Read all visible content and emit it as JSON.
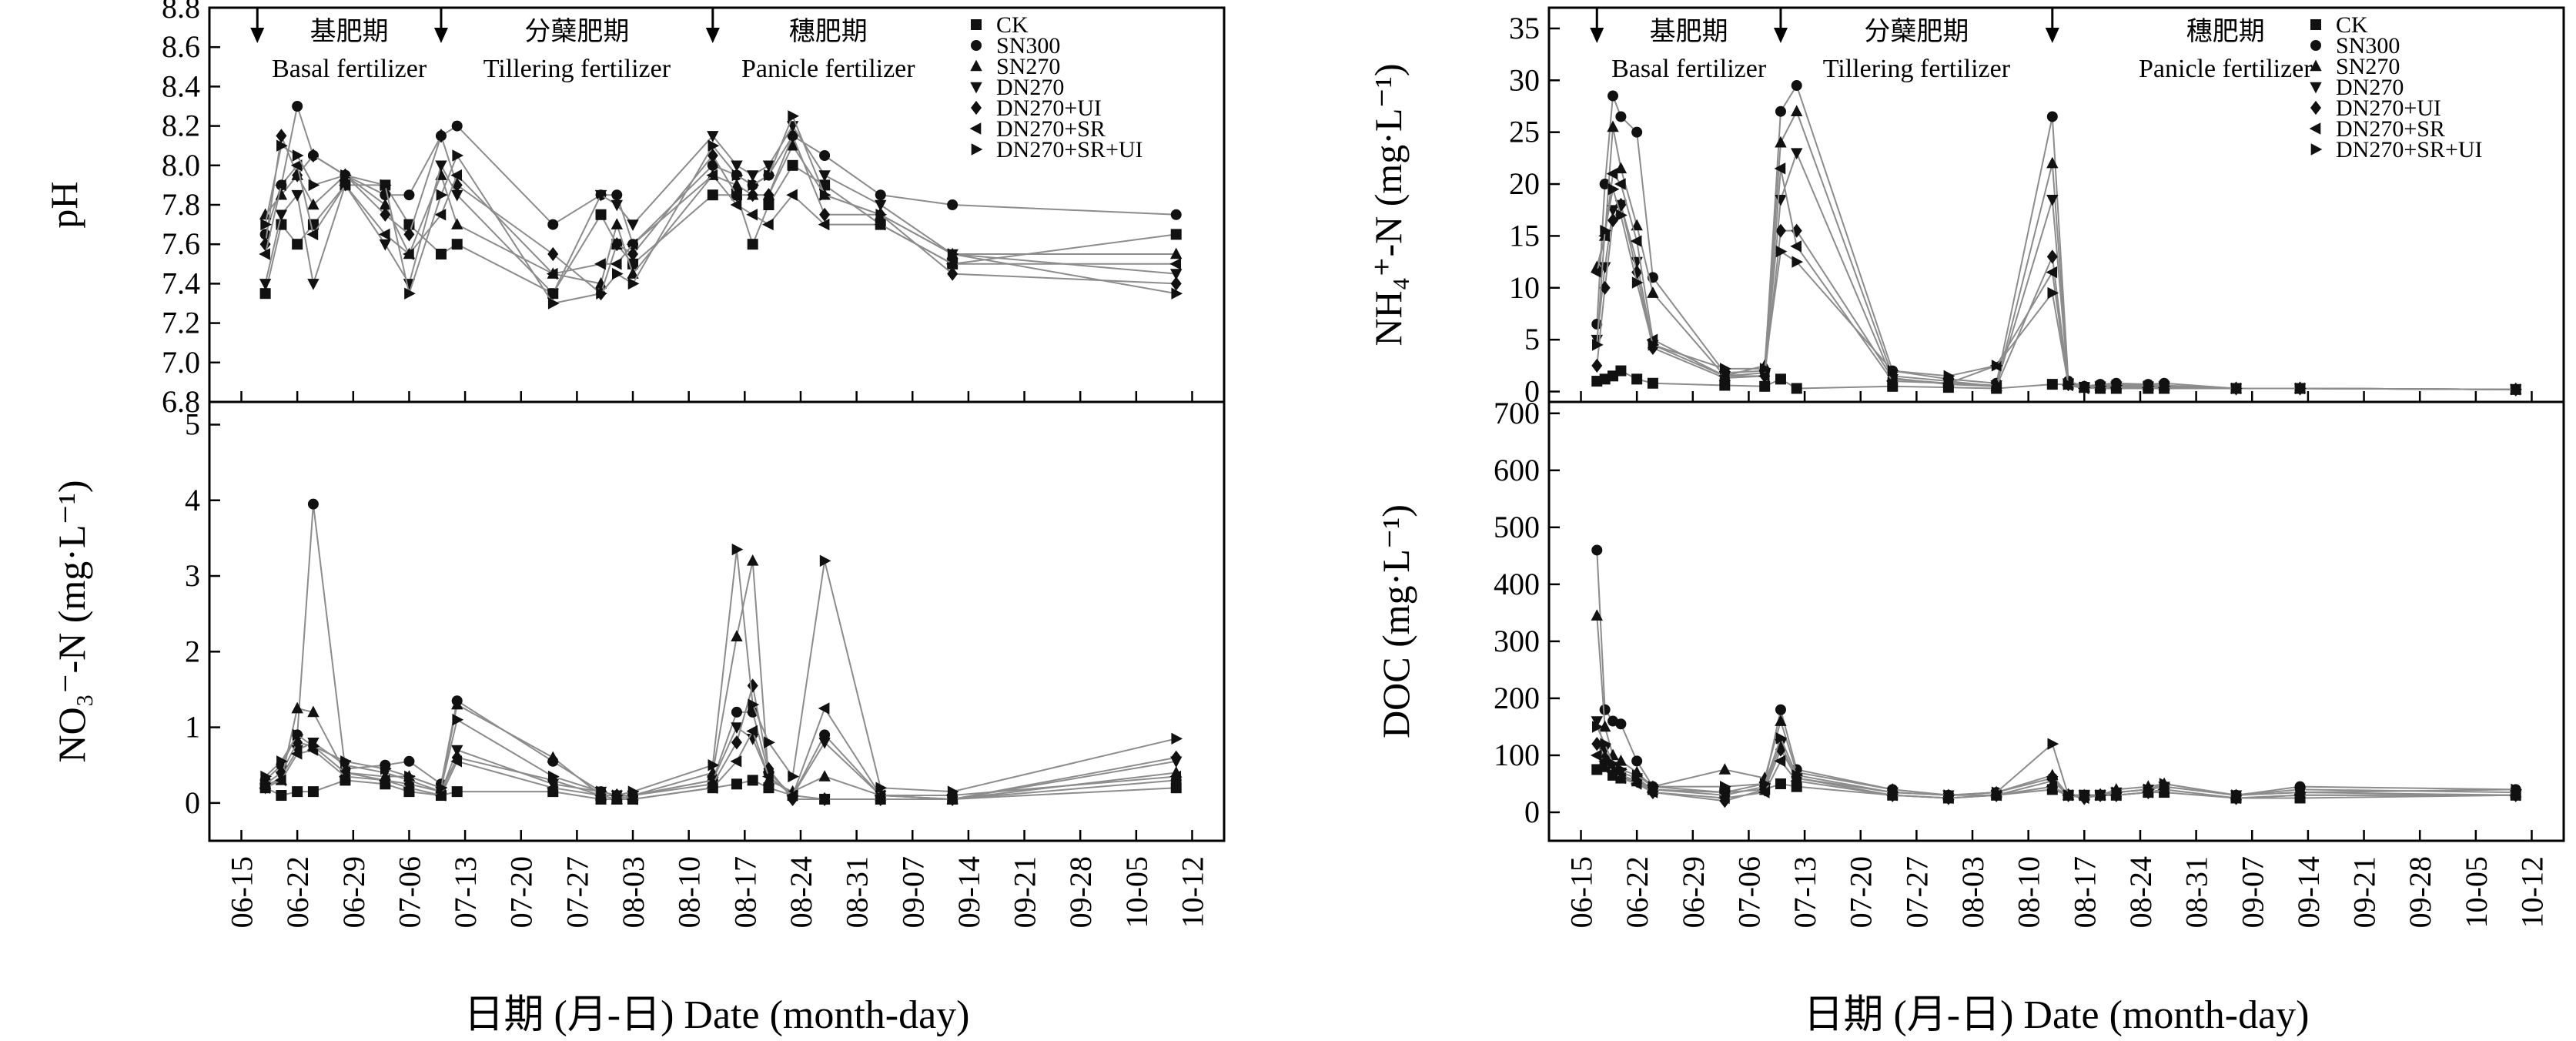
{
  "figure": {
    "series_styles": [
      {
        "name": "CK",
        "marker": "square"
      },
      {
        "name": "SN300",
        "marker": "circle"
      },
      {
        "name": "SN270",
        "marker": "triangle-up"
      },
      {
        "name": "DN270",
        "marker": "triangle-down"
      },
      {
        "name": "DN270+UI",
        "marker": "diamond"
      },
      {
        "name": "DN270+SR",
        "marker": "triangle-left"
      },
      {
        "name": "DN270+SR+UI",
        "marker": "triangle-right"
      }
    ],
    "stages": [
      {
        "cn": "基肥期",
        "en": "Basal fertilizer"
      },
      {
        "cn": "分蘖肥期",
        "en": "Tillering fertilizer"
      },
      {
        "cn": "穗肥期",
        "en": "Panicle fertilizer"
      }
    ],
    "x_ticks": [
      "06-15",
      "06-22",
      "06-29",
      "07-06",
      "07-13",
      "07-20",
      "07-27",
      "08-03",
      "08-10",
      "08-17",
      "08-24",
      "08-31",
      "09-07",
      "09-14",
      "09-21",
      "09-28",
      "10-05",
      "10-12"
    ],
    "xlabel": "日期 (月-日) Date (month-day)",
    "colors": {
      "line": "#8c8c8c",
      "marker": "#111111",
      "axis": "#000000"
    }
  },
  "chart_data": [
    {
      "type": "line",
      "panel": "pH",
      "ylabel": "pH",
      "ylim": [
        6.8,
        8.8
      ],
      "yticks": [
        "6.8",
        "7.0",
        "7.2",
        "7.4",
        "7.6",
        "7.8",
        "8.0",
        "8.2",
        "8.4",
        "8.6",
        "8.8"
      ],
      "xlim": [
        "06-15",
        "10-12"
      ],
      "arrows": [
        "06-17",
        "07-10",
        "08-13"
      ],
      "x": [
        "06-18",
        "06-20",
        "06-22",
        "06-24",
        "06-28",
        "07-03",
        "07-06",
        "07-10",
        "07-12",
        "07-24",
        "07-30",
        "08-01",
        "08-03",
        "08-13",
        "08-16",
        "08-18",
        "08-20",
        "08-23",
        "08-27",
        "09-03",
        "09-12",
        "10-10"
      ],
      "series": [
        {
          "name": "CK",
          "values": [
            7.35,
            7.7,
            7.6,
            7.7,
            7.9,
            7.9,
            7.7,
            7.55,
            7.6,
            7.35,
            7.75,
            7.6,
            7.5,
            7.85,
            7.85,
            7.6,
            7.8,
            8.0,
            7.9,
            7.7,
            7.5,
            7.65
          ]
        },
        {
          "name": "SN300",
          "values": [
            7.65,
            7.9,
            8.3,
            8.05,
            7.95,
            7.85,
            7.85,
            8.15,
            8.2,
            7.7,
            7.85,
            7.85,
            7.6,
            8.0,
            7.95,
            7.9,
            7.95,
            8.15,
            8.05,
            7.85,
            7.8,
            7.75
          ]
        },
        {
          "name": "SN270",
          "values": [
            7.75,
            7.85,
            7.95,
            7.8,
            7.95,
            7.8,
            7.55,
            7.95,
            7.7,
            7.45,
            7.4,
            7.7,
            7.45,
            7.95,
            7.9,
            7.85,
            7.85,
            8.1,
            7.85,
            7.75,
            7.55,
            7.55
          ]
        },
        {
          "name": "DN270",
          "values": [
            7.4,
            7.75,
            7.85,
            7.4,
            7.9,
            7.6,
            7.4,
            8.0,
            7.85,
            7.35,
            7.85,
            7.8,
            7.7,
            8.15,
            8.0,
            7.95,
            8.0,
            8.2,
            7.95,
            7.8,
            7.55,
            7.45
          ]
        },
        {
          "name": "DN270+UI",
          "values": [
            7.6,
            8.15,
            7.95,
            8.05,
            7.95,
            7.75,
            7.65,
            8.15,
            7.9,
            7.55,
            7.35,
            7.6,
            7.55,
            8.05,
            7.85,
            7.85,
            7.85,
            8.15,
            7.75,
            7.75,
            7.45,
            7.4
          ]
        },
        {
          "name": "DN270+SR",
          "values": [
            7.55,
            7.9,
            8.0,
            7.65,
            7.9,
            7.65,
            7.55,
            7.75,
            7.95,
            7.45,
            7.5,
            7.5,
            7.6,
            7.95,
            7.8,
            7.75,
            7.7,
            7.85,
            7.7,
            7.7,
            7.5,
            7.5
          ]
        },
        {
          "name": "DN270+SR+UI",
          "values": [
            7.7,
            8.1,
            8.05,
            7.9,
            7.95,
            7.9,
            7.35,
            7.85,
            8.05,
            7.3,
            7.35,
            7.45,
            7.4,
            8.1,
            7.95,
            7.9,
            7.95,
            8.25,
            7.85,
            7.75,
            7.55,
            7.35
          ]
        }
      ]
    },
    {
      "type": "line",
      "panel": "NO3-N",
      "ylabel": "NO₃⁻-N (mg·L⁻¹)",
      "ylim": [
        -0.5,
        5.3
      ],
      "yticks": [
        "0",
        "1",
        "2",
        "3",
        "4",
        "5"
      ],
      "xlim": [
        "06-15",
        "10-12"
      ],
      "x": [
        "06-18",
        "06-20",
        "06-22",
        "06-24",
        "06-28",
        "07-03",
        "07-06",
        "07-10",
        "07-12",
        "07-24",
        "07-30",
        "08-01",
        "08-03",
        "08-13",
        "08-16",
        "08-18",
        "08-20",
        "08-23",
        "08-27",
        "09-03",
        "09-12",
        "10-10"
      ],
      "series": [
        {
          "name": "CK",
          "values": [
            0.2,
            0.1,
            0.15,
            0.15,
            0.3,
            0.25,
            0.15,
            0.1,
            0.15,
            0.15,
            0.05,
            0.05,
            0.05,
            0.2,
            0.25,
            0.3,
            0.2,
            0.1,
            0.05,
            0.05,
            0.05,
            0.2
          ]
        },
        {
          "name": "SN300",
          "values": [
            0.3,
            0.5,
            0.9,
            3.95,
            0.45,
            0.5,
            0.55,
            0.25,
            1.35,
            0.55,
            0.15,
            0.1,
            0.1,
            0.3,
            1.2,
            1.2,
            0.4,
            0.1,
            0.9,
            0.1,
            0.05,
            0.3
          ]
        },
        {
          "name": "SN270",
          "values": [
            0.25,
            0.3,
            1.25,
            1.2,
            0.4,
            0.35,
            0.35,
            0.2,
            1.3,
            0.6,
            0.1,
            0.05,
            0.1,
            0.4,
            2.2,
            3.2,
            0.3,
            0.15,
            0.35,
            0.1,
            0.05,
            0.4
          ]
        },
        {
          "name": "DN270",
          "values": [
            0.2,
            0.35,
            0.7,
            0.8,
            0.5,
            0.4,
            0.3,
            0.15,
            0.7,
            0.25,
            0.15,
            0.1,
            0.1,
            0.3,
            1.0,
            0.85,
            0.35,
            0.1,
            0.8,
            0.1,
            0.05,
            0.55
          ]
        },
        {
          "name": "DN270+UI",
          "values": [
            0.25,
            0.4,
            0.8,
            0.75,
            0.4,
            0.3,
            0.25,
            0.15,
            0.6,
            0.3,
            0.1,
            0.1,
            0.1,
            0.25,
            0.8,
            1.55,
            0.45,
            0.05,
            0.05,
            0.05,
            0.05,
            0.6
          ]
        },
        {
          "name": "DN270+SR",
          "values": [
            0.2,
            0.3,
            0.65,
            0.7,
            0.35,
            0.3,
            0.2,
            0.1,
            0.55,
            0.2,
            0.1,
            0.1,
            0.05,
            0.2,
            0.55,
            0.95,
            0.35,
            0.1,
            1.25,
            0.1,
            0.1,
            0.35
          ]
        },
        {
          "name": "DN270+SR+UI",
          "values": [
            0.35,
            0.55,
            0.9,
            0.75,
            0.55,
            0.45,
            0.35,
            0.2,
            1.1,
            0.35,
            0.15,
            0.1,
            0.15,
            0.5,
            3.35,
            1.3,
            0.8,
            0.35,
            3.2,
            0.2,
            0.15,
            0.85
          ]
        }
      ]
    },
    {
      "type": "line",
      "panel": "NH4-N",
      "ylabel": "NH₄⁺-N (mg·L⁻¹)",
      "ylim": [
        -1,
        37
      ],
      "yticks": [
        "0",
        "5",
        "10",
        "15",
        "20",
        "25",
        "30",
        "35"
      ],
      "xlim": [
        "06-15",
        "10-12"
      ],
      "arrows": [
        "06-17",
        "07-10",
        "08-13"
      ],
      "x": [
        "06-17",
        "06-18",
        "06-19",
        "06-20",
        "06-22",
        "06-24",
        "07-03",
        "07-08",
        "07-10",
        "07-12",
        "07-24",
        "07-31",
        "08-06",
        "08-13",
        "08-15",
        "08-17",
        "08-19",
        "08-21",
        "08-25",
        "08-27",
        "09-05",
        "09-13",
        "10-10"
      ],
      "series": [
        {
          "name": "CK",
          "values": [
            1.0,
            1.2,
            1.5,
            2.0,
            1.2,
            0.8,
            0.6,
            0.5,
            1.2,
            0.3,
            0.5,
            0.4,
            0.3,
            0.7,
            0.7,
            0.4,
            0.3,
            0.3,
            0.3,
            0.3,
            0.3,
            0.3,
            0.2
          ]
        },
        {
          "name": "SN300",
          "values": [
            6.5,
            20.0,
            28.5,
            26.5,
            25.0,
            11.0,
            1.8,
            2.0,
            27.0,
            29.5,
            2.0,
            1.2,
            0.8,
            26.5,
            1.0,
            0.5,
            0.7,
            0.8,
            0.7,
            0.8,
            0.3,
            0.3,
            0.2
          ]
        },
        {
          "name": "SN270",
          "values": [
            12.0,
            15.0,
            25.5,
            21.5,
            16.0,
            9.5,
            1.5,
            2.5,
            24.0,
            27.0,
            1.5,
            1.0,
            0.5,
            22.0,
            1.0,
            0.4,
            0.6,
            0.7,
            0.6,
            0.6,
            0.3,
            0.3,
            0.2
          ]
        },
        {
          "name": "DN270",
          "values": [
            5.0,
            12.0,
            17.5,
            18.0,
            12.5,
            4.5,
            1.5,
            1.8,
            18.5,
            23.0,
            1.2,
            0.8,
            0.6,
            18.5,
            0.8,
            0.4,
            0.5,
            0.5,
            0.5,
            0.5,
            0.3,
            0.3,
            0.2
          ]
        },
        {
          "name": "DN270+UI",
          "values": [
            2.5,
            10.0,
            16.5,
            18.0,
            11.5,
            4.2,
            1.3,
            1.5,
            15.5,
            15.5,
            1.3,
            0.7,
            0.5,
            13.0,
            0.7,
            0.4,
            0.5,
            0.5,
            0.5,
            0.5,
            0.3,
            0.3,
            0.2
          ]
        },
        {
          "name": "DN270+SR",
          "values": [
            11.5,
            15.0,
            21.0,
            20.0,
            14.5,
            5.0,
            1.5,
            1.5,
            21.5,
            14.0,
            1.0,
            0.8,
            2.5,
            11.5,
            0.6,
            0.3,
            0.4,
            0.4,
            0.4,
            0.4,
            0.3,
            0.3,
            0.2
          ]
        },
        {
          "name": "DN270+SR+UI",
          "values": [
            4.5,
            15.5,
            19.5,
            17.0,
            10.5,
            4.5,
            2.2,
            2.2,
            13.5,
            12.5,
            2.0,
            1.5,
            2.5,
            9.5,
            0.7,
            0.4,
            0.5,
            0.6,
            0.5,
            0.5,
            0.3,
            0.3,
            0.2
          ]
        }
      ]
    },
    {
      "type": "line",
      "panel": "DOC",
      "ylabel": "DOC (mg·L⁻¹)",
      "ylim": [
        -50,
        720
      ],
      "yticks": [
        "0",
        "100",
        "200",
        "300",
        "400",
        "500",
        "600",
        "700"
      ],
      "xlim": [
        "06-15",
        "10-12"
      ],
      "x": [
        "06-17",
        "06-18",
        "06-19",
        "06-20",
        "06-22",
        "06-24",
        "07-03",
        "07-08",
        "07-10",
        "07-12",
        "07-24",
        "07-31",
        "08-06",
        "08-13",
        "08-15",
        "08-17",
        "08-19",
        "08-21",
        "08-25",
        "08-27",
        "09-05",
        "09-13",
        "10-10"
      ],
      "series": [
        {
          "name": "CK",
          "values": [
            75,
            80,
            65,
            60,
            55,
            40,
            35,
            40,
            50,
            45,
            30,
            25,
            30,
            40,
            30,
            30,
            30,
            30,
            35,
            35,
            25,
            25,
            30
          ]
        },
        {
          "name": "SN300",
          "values": [
            460,
            180,
            160,
            155,
            90,
            45,
            35,
            50,
            180,
            75,
            40,
            30,
            35,
            60,
            30,
            30,
            30,
            35,
            40,
            45,
            30,
            45,
            40
          ]
        },
        {
          "name": "SN270",
          "values": [
            345,
            150,
            100,
            90,
            70,
            45,
            75,
            60,
            160,
            70,
            40,
            30,
            35,
            65,
            30,
            30,
            30,
            40,
            45,
            50,
            30,
            40,
            35
          ]
        },
        {
          "name": "DN270",
          "values": [
            160,
            110,
            80,
            70,
            60,
            40,
            30,
            45,
            120,
            60,
            35,
            30,
            30,
            55,
            30,
            30,
            30,
            35,
            40,
            45,
            30,
            35,
            30
          ]
        },
        {
          "name": "DN270+UI",
          "values": [
            120,
            95,
            75,
            65,
            55,
            35,
            20,
            40,
            110,
            60,
            30,
            25,
            30,
            45,
            30,
            25,
            30,
            30,
            35,
            40,
            25,
            30,
            30
          ]
        },
        {
          "name": "DN270+SR",
          "values": [
            100,
            90,
            70,
            60,
            50,
            35,
            25,
            35,
            90,
            55,
            30,
            25,
            30,
            45,
            30,
            25,
            30,
            30,
            35,
            40,
            25,
            30,
            30
          ]
        },
        {
          "name": "DN270+SR+UI",
          "values": [
            150,
            120,
            85,
            75,
            65,
            45,
            45,
            50,
            130,
            65,
            35,
            30,
            35,
            120,
            30,
            30,
            30,
            35,
            40,
            50,
            30,
            35,
            40
          ]
        }
      ]
    }
  ]
}
